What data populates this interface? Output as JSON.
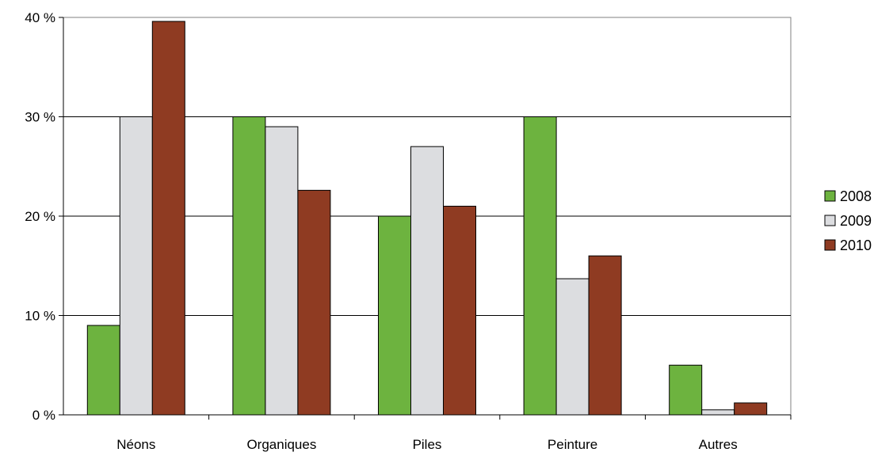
{
  "chart_data": {
    "type": "bar",
    "categories": [
      "Néons",
      "Organiques",
      "Piles",
      "Peinture",
      "Autres"
    ],
    "series": [
      {
        "name": "2008",
        "values": [
          9,
          30,
          20,
          30,
          5
        ]
      },
      {
        "name": "2009",
        "values": [
          30,
          29,
          27,
          13.7,
          0.5
        ]
      },
      {
        "name": "2010",
        "values": [
          39.6,
          22.6,
          21,
          16,
          1.2
        ]
      }
    ],
    "title": "",
    "xlabel": "",
    "ylabel": "",
    "ylim": [
      0,
      40
    ],
    "yticks": [
      0,
      10,
      20,
      30,
      40
    ],
    "ytick_labels": [
      "0 %",
      "10 %",
      "20 %",
      "30 %",
      "40 %"
    ],
    "grid": true,
    "legend_position": "right",
    "colors": [
      "#6db33f",
      "#dcdde0",
      "#8f3b22"
    ]
  }
}
